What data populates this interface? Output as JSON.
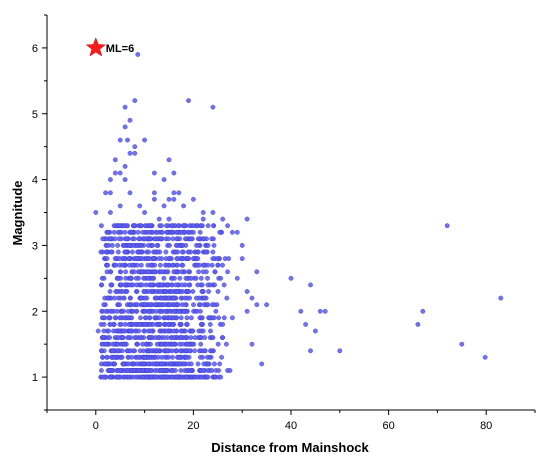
{
  "chart_data": {
    "type": "scatter",
    "title": "",
    "xlabel": "Distance from Mainshock",
    "ylabel": "Magnitude",
    "xlim": [
      -10,
      90
    ],
    "ylim": [
      0.5,
      6.5
    ],
    "xticks": [
      0,
      20,
      40,
      60,
      80
    ],
    "yticks": [
      1,
      2,
      3,
      4,
      5,
      6
    ],
    "grid": false,
    "legend": "none",
    "colors": {
      "points": "#5a5af0",
      "point_edge": "#3c3cc8",
      "mainshock": "#ff1a1a"
    },
    "mainshock": {
      "x": 0,
      "y": 6,
      "label": "ML=6"
    },
    "points": {
      "x": [
        8.6,
        19,
        24,
        8,
        6,
        7,
        6,
        6.5,
        10,
        5,
        8,
        4,
        8,
        7,
        15,
        6,
        3,
        4,
        5,
        12,
        16,
        14,
        6,
        3,
        7,
        12,
        16,
        17,
        20,
        15,
        14,
        18,
        22,
        24,
        10,
        13,
        15,
        18,
        26,
        28,
        31,
        3,
        5,
        12,
        20,
        27,
        29,
        72,
        0,
        2,
        9,
        16,
        22,
        30,
        40,
        44,
        46,
        67,
        83,
        0.5,
        32,
        26,
        43,
        66,
        23,
        27,
        34,
        75,
        50,
        44,
        79.8,
        27.5,
        25.6,
        35,
        42,
        45,
        47,
        29,
        31,
        32,
        33,
        25,
        24,
        23,
        22,
        21,
        20,
        27,
        30,
        33,
        26,
        28,
        31
      ],
      "y": [
        5.9,
        5.2,
        5.1,
        5.2,
        5.1,
        4.9,
        4.8,
        4.6,
        4.6,
        4.6,
        4.5,
        4.3,
        4.4,
        4.4,
        4.3,
        4.2,
        4.0,
        4.1,
        4.1,
        4.1,
        4.1,
        4.0,
        4.0,
        3.8,
        3.8,
        3.8,
        3.8,
        3.8,
        3.7,
        3.7,
        3.6,
        3.6,
        3.5,
        3.5,
        3.5,
        3.4,
        3.4,
        3.3,
        3.4,
        3.2,
        3.4,
        3.5,
        3.6,
        3.7,
        3.3,
        3.3,
        3.2,
        3.3,
        3.5,
        3.8,
        3.6,
        3.7,
        3.4,
        3.0,
        2.5,
        2.4,
        2.0,
        2.0,
        2.2,
        1.7,
        1.5,
        1.6,
        1.8,
        1.8,
        1.2,
        1.1,
        1.2,
        1.5,
        1.4,
        1.4,
        1.3,
        1.1,
        1.0,
        2.1,
        2.0,
        1.7,
        2.0,
        2.5,
        2.3,
        2.2,
        2.1,
        2.7,
        2.9,
        3.0,
        3.1,
        2.9,
        2.8,
        2.6,
        2.8,
        2.6,
        1.8,
        1.9,
        2.0
      ]
    },
    "dense_clusters": [
      {
        "x_range": [
          1,
          28
        ],
        "y_range": [
          1.0,
          3.3
        ],
        "count": 1500
      }
    ]
  }
}
